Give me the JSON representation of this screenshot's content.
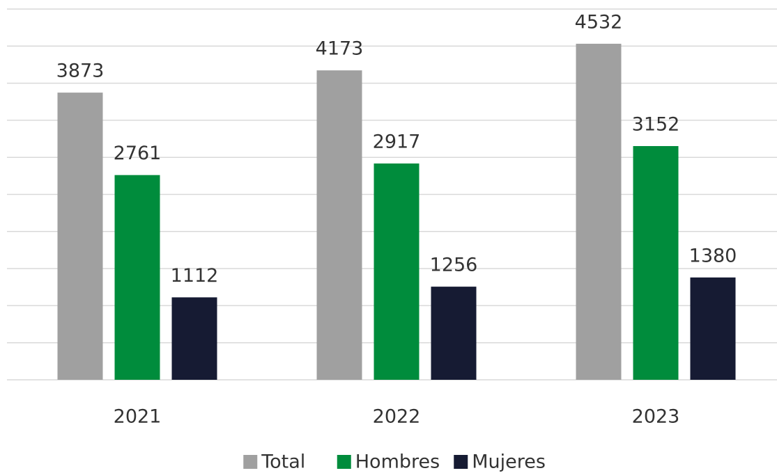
{
  "chart_data": {
    "type": "bar",
    "categories": [
      "2021",
      "2022",
      "2023"
    ],
    "series": [
      {
        "name": "Total",
        "color": "#a0a0a0",
        "values": [
          3873,
          4173,
          4532
        ]
      },
      {
        "name": "Hombres",
        "color": "#008c3c",
        "values": [
          2761,
          2917,
          3152
        ]
      },
      {
        "name": "Mujeres",
        "color": "#161b33",
        "values": [
          1112,
          1256,
          1380
        ]
      }
    ],
    "ylim": [
      0,
      5000
    ],
    "yticks": [
      0,
      500,
      1000,
      1500,
      2000,
      2500,
      3000,
      3500,
      4000,
      4500,
      5000
    ],
    "grid": true,
    "legend": "bottom"
  }
}
